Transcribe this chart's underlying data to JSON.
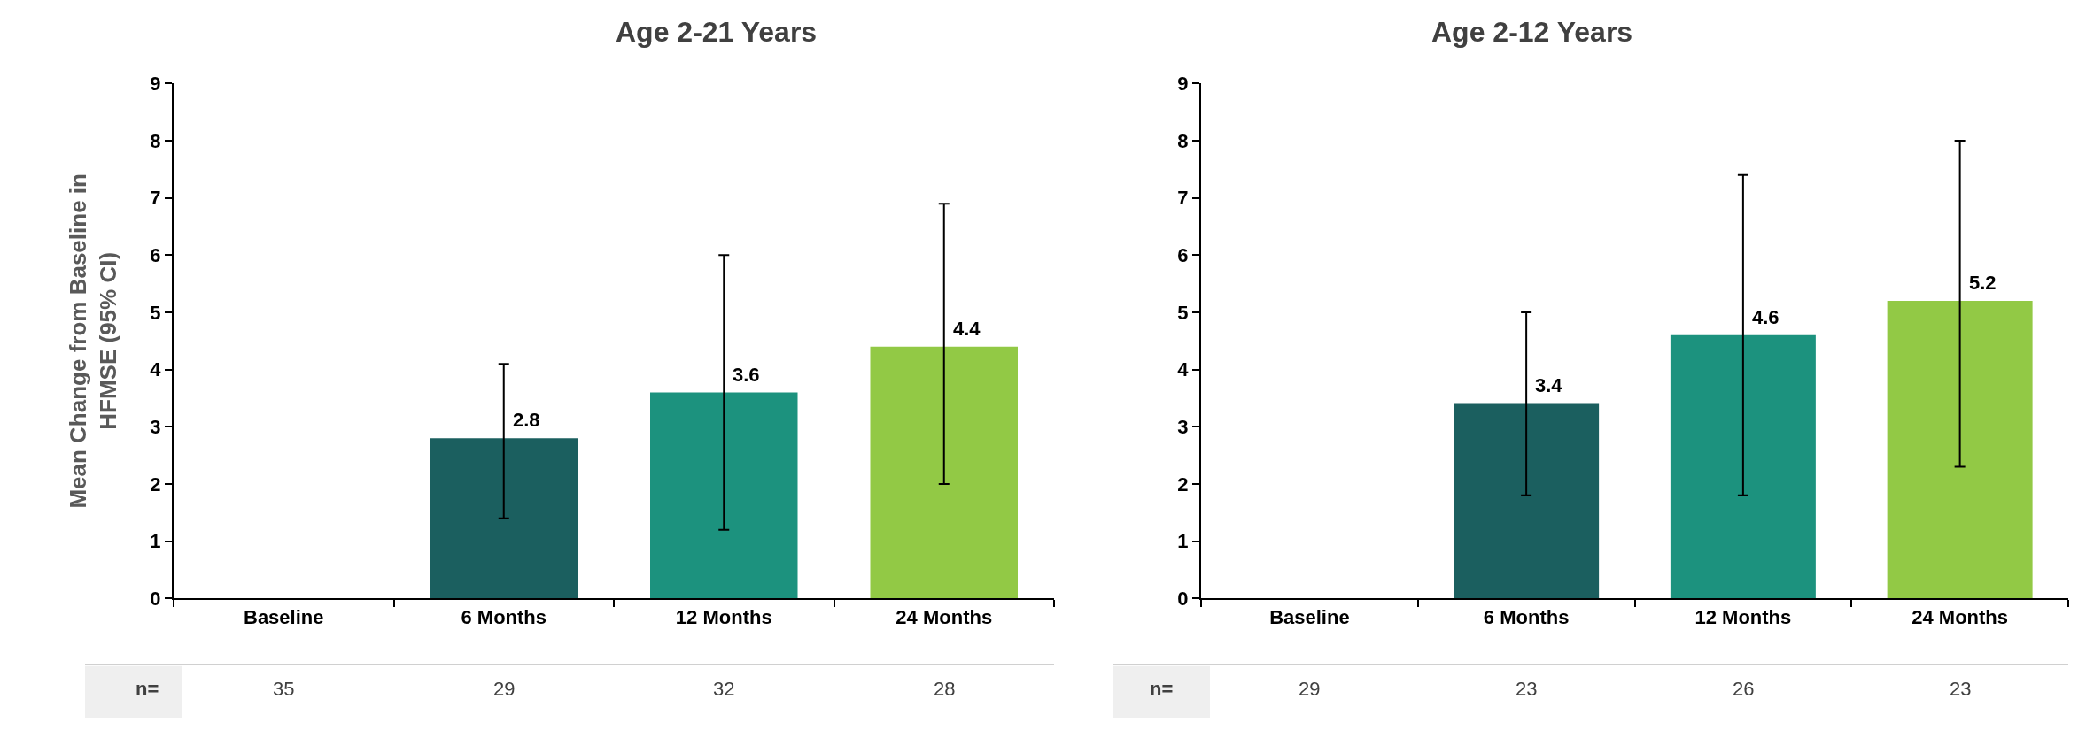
{
  "chart_data": [
    {
      "type": "bar",
      "title": "Age 2-21 Years",
      "ylabel": "Mean Change from Baseline in\nHFMSE (95% CI)",
      "categories": [
        "Baseline",
        "6 Months",
        "12 Months",
        "24 Months"
      ],
      "values": [
        null,
        2.8,
        3.6,
        4.4
      ],
      "colors": [
        "#1b5f5f",
        "#1b5f5f",
        "#1c927e",
        "#92c945"
      ],
      "errors": [
        null,
        [
          1.4,
          4.1
        ],
        [
          1.2,
          6.0
        ],
        [
          2.0,
          6.9
        ]
      ],
      "data_labels": true,
      "ylim": [
        0,
        9
      ],
      "yticks": [
        0,
        1,
        2,
        3,
        4,
        5,
        6,
        7,
        8,
        9
      ],
      "annotations": [
        "n=",
        "35",
        "29",
        "32",
        "28"
      ]
    },
    {
      "type": "bar",
      "title": "Age 2-12 Years",
      "categories": [
        "Baseline",
        "6 Months",
        "12 Months",
        "24 Months"
      ],
      "values": [
        null,
        3.4,
        4.6,
        5.2
      ],
      "colors": [
        "#1b5f5f",
        "#1b5f5f",
        "#1c927e",
        "#92c945"
      ],
      "errors": [
        null,
        [
          1.8,
          5.0
        ],
        [
          1.8,
          7.4
        ],
        [
          2.3,
          8.0
        ]
      ],
      "data_labels": true,
      "ylim": [
        0,
        9
      ],
      "yticks": [
        0,
        1,
        2,
        3,
        4,
        5,
        6,
        7,
        8,
        9
      ],
      "annotations": [
        "n=",
        "29",
        "23",
        "26",
        "23"
      ]
    }
  ]
}
